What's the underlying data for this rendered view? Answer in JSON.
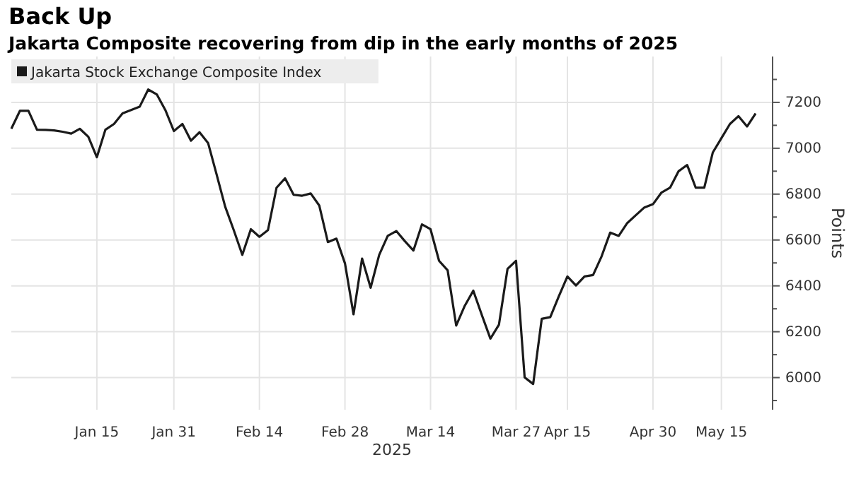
{
  "chart_data": {
    "type": "line",
    "title": "Back Up",
    "subtitle": "Jakarta Composite recovering from dip in the early months of 2025",
    "xlabel": "2025",
    "ylabel": "Points",
    "categories": [
      null,
      null,
      null,
      null,
      null,
      null,
      null,
      null,
      null,
      null,
      "Jan 15",
      null,
      null,
      null,
      null,
      null,
      null,
      null,
      null,
      "Jan 31",
      null,
      null,
      null,
      null,
      null,
      null,
      null,
      null,
      null,
      "Feb 14",
      null,
      null,
      null,
      null,
      null,
      null,
      null,
      null,
      null,
      "Feb 28",
      null,
      null,
      null,
      null,
      null,
      null,
      null,
      null,
      null,
      "Mar 14",
      null,
      null,
      null,
      null,
      null,
      null,
      null,
      null,
      null,
      "Mar 27",
      null,
      null,
      null,
      null,
      null,
      "Apr 15",
      null,
      null,
      null,
      null,
      null,
      null,
      null,
      null,
      null,
      "Apr 30",
      null,
      null,
      null,
      null,
      null,
      null,
      null,
      "May 15",
      null,
      null,
      null,
      null
    ],
    "series": [
      {
        "name": "Jakarta Stock Exchange Composite Index",
        "color": "#1a1a1a",
        "values": [
          7085,
          7163,
          7163,
          7081,
          7080,
          7078,
          7072,
          7064,
          7085,
          7050,
          6961,
          7081,
          7106,
          7152,
          7167,
          7181,
          7256,
          7235,
          7167,
          7075,
          7106,
          7033,
          7070,
          7023,
          6885,
          6745,
          6643,
          6535,
          6647,
          6614,
          6643,
          6828,
          6869,
          6797,
          6793,
          6803,
          6750,
          6591,
          6606,
          6498,
          6276,
          6519,
          6392,
          6535,
          6618,
          6639,
          6595,
          6554,
          6668,
          6647,
          6509,
          6468,
          6227,
          6313,
          6379,
          6273,
          6170,
          6231,
          6474,
          6509,
          6001,
          5972,
          6256,
          6264,
          6355,
          6441,
          6402,
          6441,
          6447,
          6529,
          6632,
          6618,
          6674,
          6708,
          6742,
          6756,
          6807,
          6828,
          6900,
          6927,
          6828,
          6828,
          6982,
          7044,
          7106,
          7140,
          7095,
          7152
        ]
      }
    ],
    "ylim": [
      5860,
      7400
    ],
    "yticks": [
      {
        "value": 5900,
        "label": null
      },
      6000,
      {
        "value": 6100,
        "label": null
      },
      6200,
      {
        "value": 6300,
        "label": null
      },
      6400,
      {
        "value": 6500,
        "label": null
      },
      6600,
      {
        "value": 6700,
        "label": null
      },
      6800,
      {
        "value": 6900,
        "label": null
      },
      7000,
      {
        "value": 7100,
        "label": null
      },
      7200,
      {
        "value": 7300,
        "label": null
      }
    ],
    "grid": true,
    "legend": "top left",
    "line_style": "solid",
    "marker": "none"
  }
}
